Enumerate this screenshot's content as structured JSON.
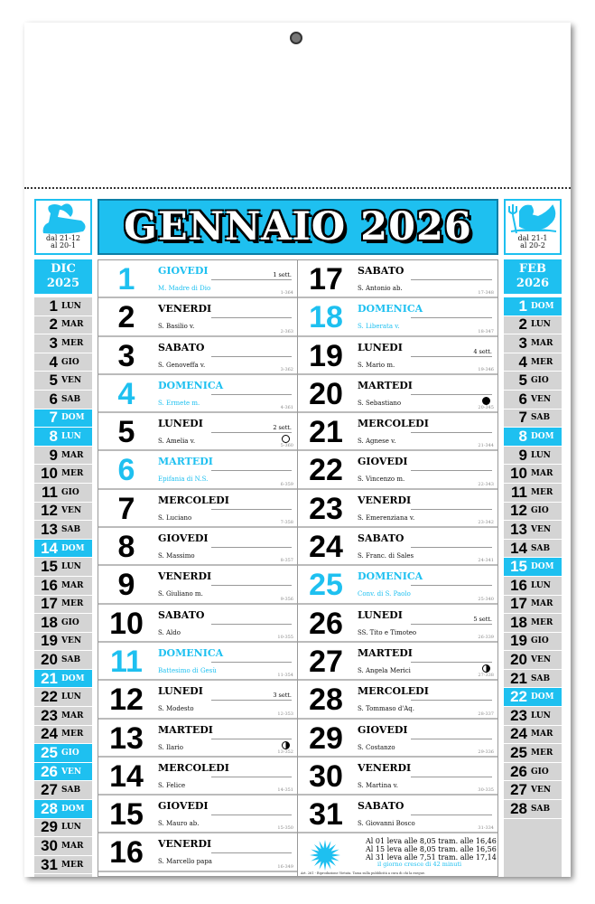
{
  "header": {
    "title": "GENNAIO 2026",
    "accent": "#1ec0f0",
    "zodiac_left": {
      "icon": "capricorn-icon",
      "range1": "dal 21-12",
      "range2": "al 20-1"
    },
    "zodiac_right": {
      "icon": "aquarius-icon",
      "range1": "dal 21-1",
      "range2": "al 20-2"
    }
  },
  "prev_month": {
    "label1": "DIC",
    "label2": "2025",
    "days": [
      [
        "1",
        "LUN",
        0
      ],
      [
        "2",
        "MAR",
        0
      ],
      [
        "3",
        "MER",
        0
      ],
      [
        "4",
        "GIO",
        0
      ],
      [
        "5",
        "VEN",
        0
      ],
      [
        "6",
        "SAB",
        0
      ],
      [
        "7",
        "DOM",
        1
      ],
      [
        "8",
        "LUN",
        1
      ],
      [
        "9",
        "MAR",
        0
      ],
      [
        "10",
        "MER",
        0
      ],
      [
        "11",
        "GIO",
        0
      ],
      [
        "12",
        "VEN",
        0
      ],
      [
        "13",
        "SAB",
        0
      ],
      [
        "14",
        "DOM",
        1
      ],
      [
        "15",
        "LUN",
        0
      ],
      [
        "16",
        "MAR",
        0
      ],
      [
        "17",
        "MER",
        0
      ],
      [
        "18",
        "GIO",
        0
      ],
      [
        "19",
        "VEN",
        0
      ],
      [
        "20",
        "SAB",
        0
      ],
      [
        "21",
        "DOM",
        1
      ],
      [
        "22",
        "LUN",
        0
      ],
      [
        "23",
        "MAR",
        0
      ],
      [
        "24",
        "MER",
        0
      ],
      [
        "25",
        "GIO",
        1
      ],
      [
        "26",
        "VEN",
        1
      ],
      [
        "27",
        "SAB",
        0
      ],
      [
        "28",
        "DOM",
        1
      ],
      [
        "29",
        "LUN",
        0
      ],
      [
        "30",
        "MAR",
        0
      ],
      [
        "31",
        "MER",
        0
      ]
    ]
  },
  "next_month": {
    "label1": "FEB",
    "label2": "2026",
    "days": [
      [
        "1",
        "DOM",
        1
      ],
      [
        "2",
        "LUN",
        0
      ],
      [
        "3",
        "MAR",
        0
      ],
      [
        "4",
        "MER",
        0
      ],
      [
        "5",
        "GIO",
        0
      ],
      [
        "6",
        "VEN",
        0
      ],
      [
        "7",
        "SAB",
        0
      ],
      [
        "8",
        "DOM",
        1
      ],
      [
        "9",
        "LUN",
        0
      ],
      [
        "10",
        "MAR",
        0
      ],
      [
        "11",
        "MER",
        0
      ],
      [
        "12",
        "GIO",
        0
      ],
      [
        "13",
        "VEN",
        0
      ],
      [
        "14",
        "SAB",
        0
      ],
      [
        "15",
        "DOM",
        1
      ],
      [
        "16",
        "LUN",
        0
      ],
      [
        "17",
        "MAR",
        0
      ],
      [
        "18",
        "MER",
        0
      ],
      [
        "19",
        "GIO",
        0
      ],
      [
        "20",
        "VEN",
        0
      ],
      [
        "21",
        "SAB",
        0
      ],
      [
        "22",
        "DOM",
        1
      ],
      [
        "23",
        "LUN",
        0
      ],
      [
        "24",
        "MAR",
        0
      ],
      [
        "25",
        "MER",
        0
      ],
      [
        "26",
        "GIO",
        0
      ],
      [
        "27",
        "VEN",
        0
      ],
      [
        "28",
        "SAB",
        0
      ]
    ]
  },
  "days": [
    {
      "n": "1",
      "wd": "GIOVEDI",
      "saint": "M. Madre di Dio",
      "code": "1-364",
      "hl": true,
      "week": "1 sett."
    },
    {
      "n": "2",
      "wd": "VENERDI",
      "saint": "S. Basilio v.",
      "code": "2-363"
    },
    {
      "n": "3",
      "wd": "SABATO",
      "saint": "S. Genoveffa v.",
      "code": "3-362"
    },
    {
      "n": "4",
      "wd": "DOMENICA",
      "saint": "S. Ermete m.",
      "code": "4-361",
      "hl": true
    },
    {
      "n": "5",
      "wd": "LUNEDI",
      "saint": "S. Amelia v.",
      "code": "5-360",
      "week": "2 sett.",
      "moon": "full"
    },
    {
      "n": "6",
      "wd": "MARTEDI",
      "saint": "Epifania di N.S.",
      "code": "6-359",
      "hl": true
    },
    {
      "n": "7",
      "wd": "MERCOLEDI",
      "saint": "S. Luciano",
      "code": "7-358"
    },
    {
      "n": "8",
      "wd": "GIOVEDI",
      "saint": "S. Massimo",
      "code": "8-357"
    },
    {
      "n": "9",
      "wd": "VENERDI",
      "saint": "S. Giuliano m.",
      "code": "9-356"
    },
    {
      "n": "10",
      "wd": "SABATO",
      "saint": "S. Aldo",
      "code": "10-355"
    },
    {
      "n": "11",
      "wd": "DOMENICA",
      "saint": "Battesimo di Gesù",
      "code": "11-354",
      "hl": true
    },
    {
      "n": "12",
      "wd": "LUNEDI",
      "saint": "S. Modesto",
      "code": "12-353",
      "week": "3 sett."
    },
    {
      "n": "13",
      "wd": "MARTEDI",
      "saint": "S. Ilario",
      "code": "13-352",
      "moon": "half"
    },
    {
      "n": "14",
      "wd": "MERCOLEDI",
      "saint": "S. Felice",
      "code": "14-351"
    },
    {
      "n": "15",
      "wd": "GIOVEDI",
      "saint": "S. Mauro ab.",
      "code": "15-350"
    },
    {
      "n": "16",
      "wd": "VENERDI",
      "saint": "S. Marcello papa",
      "code": "16-349"
    },
    {
      "n": "17",
      "wd": "SABATO",
      "saint": "S. Antonio ab.",
      "code": "17-348"
    },
    {
      "n": "18",
      "wd": "DOMENICA",
      "saint": "S. Liberata v.",
      "code": "18-347",
      "hl": true
    },
    {
      "n": "19",
      "wd": "LUNEDI",
      "saint": "S. Mario m.",
      "code": "19-346",
      "week": "4 sett."
    },
    {
      "n": "20",
      "wd": "MARTEDI",
      "saint": "S. Sebastiano",
      "code": "20-345",
      "moon": "new"
    },
    {
      "n": "21",
      "wd": "MERCOLEDI",
      "saint": "S. Agnese v.",
      "code": "21-344"
    },
    {
      "n": "22",
      "wd": "GIOVEDI",
      "saint": "S. Vincenzo m.",
      "code": "22-343"
    },
    {
      "n": "23",
      "wd": "VENERDI",
      "saint": "S. Emerenziana v.",
      "code": "23-342"
    },
    {
      "n": "24",
      "wd": "SABATO",
      "saint": "S. Franc. di Sales",
      "code": "24-341"
    },
    {
      "n": "25",
      "wd": "DOMENICA",
      "saint": "Conv. di S. Paolo",
      "code": "25-340",
      "hl": true
    },
    {
      "n": "26",
      "wd": "LUNEDI",
      "saint": "SS. Tito e Timoteo",
      "code": "26-339",
      "week": "5 sett."
    },
    {
      "n": "27",
      "wd": "MARTEDI",
      "saint": "S. Angela Merici",
      "code": "27-338",
      "moon": "half"
    },
    {
      "n": "28",
      "wd": "MERCOLEDI",
      "saint": "S. Tommaso d'Aq.",
      "code": "28-337"
    },
    {
      "n": "29",
      "wd": "GIOVEDI",
      "saint": "S. Costanzo",
      "code": "29-336"
    },
    {
      "n": "30",
      "wd": "VENERDI",
      "saint": "S. Martina v.",
      "code": "30-335"
    },
    {
      "n": "31",
      "wd": "SABATO",
      "saint": "S. Giovanni Bosco",
      "code": "31-334"
    }
  ],
  "sun_info": {
    "lines": [
      "Al 01 leva alle 8,05 tram. alle 16,46",
      "Al 15 leva alle 8,05 tram. alle 16,56",
      "Al 31 leva alle 7,51 tram. alle 17,14"
    ],
    "grow": "il giorno cresce di 42 minuti",
    "legal": "Art. 261 - Riproduzione Vietata. Tassa sulla pubblicità a cura di chi la esegue."
  }
}
